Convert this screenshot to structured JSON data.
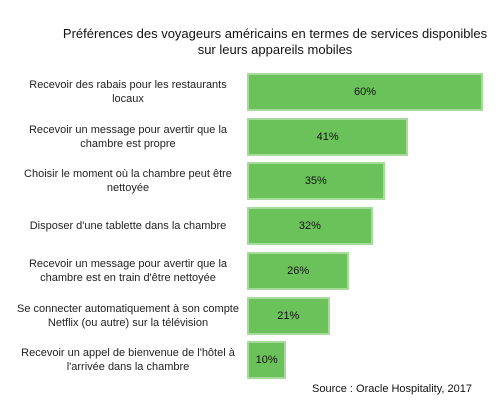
{
  "chart_data": {
    "type": "bar",
    "orientation": "horizontal",
    "title": "Préférences des voyageurs américains en termes de services disponibles sur leurs appareils mobiles",
    "categories": [
      "Recevoir des rabais pour les restaurants locaux",
      "Recevoir un message pour avertir que la chambre est propre",
      "Choisir le moment où la chambre peut être nettoyée",
      "Disposer d'une tablette dans la chambre",
      "Recevoir un message pour avertir que la chambre est en train d'être nettoyée",
      "Se connecter automatiquement à son compte Netflix (ou autre) sur la télévision",
      "Recevoir un appel de bienvenue de l'hôtel à l'arrivée dans la chambre"
    ],
    "values": [
      60,
      41,
      35,
      32,
      26,
      21,
      10
    ],
    "value_labels": [
      "60%",
      "41%",
      "35%",
      "32%",
      "26%",
      "21%",
      "10%"
    ],
    "color": "#6cc25a",
    "source": "Source : Oracle Hospitality, 2017"
  }
}
